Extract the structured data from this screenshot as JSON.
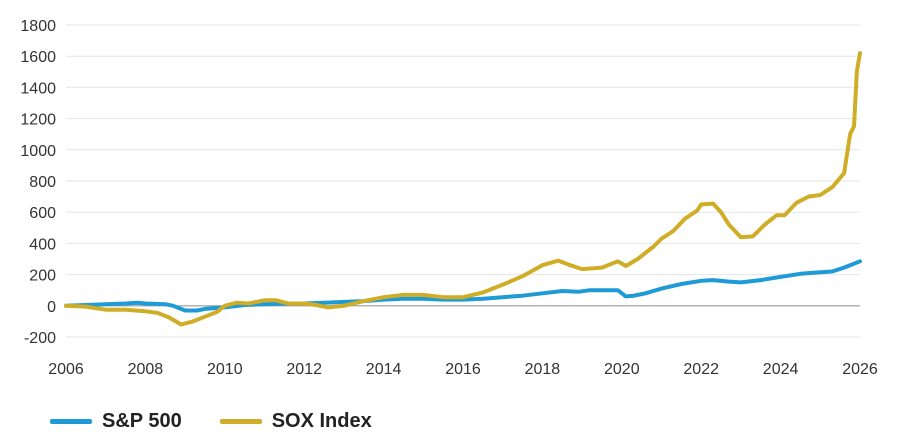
{
  "chart_data": {
    "type": "line",
    "title": "",
    "xlabel": "",
    "ylabel": "",
    "xlim": [
      2006,
      2026
    ],
    "ylim": [
      -200,
      1800
    ],
    "y_ticks": [
      "1800",
      "1600",
      "1400",
      "1200",
      "1000",
      "800",
      "600",
      "400",
      "200",
      "0",
      "-200"
    ],
    "x_ticks": [
      "2006",
      "2008",
      "2010",
      "2012",
      "2014",
      "2016",
      "2018",
      "2020",
      "2022",
      "2024",
      "2026"
    ],
    "grid": "horizontal",
    "legend_position": "bottom-left",
    "series": [
      {
        "name": "S&P 500",
        "color": "#1e9bd7",
        "points": [
          [
            2006.0,
            0
          ],
          [
            2006.5,
            5
          ],
          [
            2007.0,
            10
          ],
          [
            2007.5,
            15
          ],
          [
            2007.8,
            20
          ],
          [
            2008.0,
            15
          ],
          [
            2008.5,
            10
          ],
          [
            2008.7,
            0
          ],
          [
            2009.0,
            -30
          ],
          [
            2009.3,
            -30
          ],
          [
            2009.5,
            -20
          ],
          [
            2010.0,
            -10
          ],
          [
            2010.5,
            5
          ],
          [
            2011.0,
            10
          ],
          [
            2011.5,
            15
          ],
          [
            2012.0,
            15
          ],
          [
            2012.5,
            20
          ],
          [
            2013.0,
            25
          ],
          [
            2013.5,
            30
          ],
          [
            2014.0,
            40
          ],
          [
            2014.5,
            45
          ],
          [
            2015.0,
            45
          ],
          [
            2015.5,
            40
          ],
          [
            2016.0,
            40
          ],
          [
            2016.5,
            45
          ],
          [
            2017.0,
            55
          ],
          [
            2017.5,
            65
          ],
          [
            2018.0,
            80
          ],
          [
            2018.5,
            95
          ],
          [
            2018.9,
            90
          ],
          [
            2019.2,
            100
          ],
          [
            2019.6,
            100
          ],
          [
            2019.9,
            100
          ],
          [
            2020.1,
            60
          ],
          [
            2020.3,
            65
          ],
          [
            2020.6,
            80
          ],
          [
            2021.0,
            110
          ],
          [
            2021.5,
            140
          ],
          [
            2022.0,
            160
          ],
          [
            2022.3,
            165
          ],
          [
            2022.7,
            155
          ],
          [
            2023.0,
            150
          ],
          [
            2023.5,
            165
          ],
          [
            2024.0,
            185
          ],
          [
            2024.5,
            205
          ],
          [
            2025.0,
            215
          ],
          [
            2025.3,
            220
          ],
          [
            2025.6,
            245
          ],
          [
            2026.0,
            285
          ]
        ]
      },
      {
        "name": "SOX Index",
        "color": "#d0ad27",
        "points": [
          [
            2006.0,
            0
          ],
          [
            2006.5,
            -5
          ],
          [
            2007.0,
            -25
          ],
          [
            2007.5,
            -25
          ],
          [
            2008.0,
            -35
          ],
          [
            2008.3,
            -45
          ],
          [
            2008.6,
            -75
          ],
          [
            2008.9,
            -120
          ],
          [
            2009.2,
            -100
          ],
          [
            2009.5,
            -70
          ],
          [
            2009.8,
            -40
          ],
          [
            2010.0,
            0
          ],
          [
            2010.3,
            20
          ],
          [
            2010.6,
            15
          ],
          [
            2011.0,
            35
          ],
          [
            2011.3,
            35
          ],
          [
            2011.6,
            15
          ],
          [
            2012.0,
            15
          ],
          [
            2012.3,
            5
          ],
          [
            2012.6,
            -10
          ],
          [
            2013.0,
            0
          ],
          [
            2013.5,
            30
          ],
          [
            2014.0,
            55
          ],
          [
            2014.5,
            70
          ],
          [
            2015.0,
            70
          ],
          [
            2015.5,
            55
          ],
          [
            2016.0,
            55
          ],
          [
            2016.5,
            85
          ],
          [
            2017.0,
            135
          ],
          [
            2017.5,
            190
          ],
          [
            2018.0,
            260
          ],
          [
            2018.4,
            290
          ],
          [
            2018.7,
            260
          ],
          [
            2019.0,
            235
          ],
          [
            2019.5,
            245
          ],
          [
            2019.9,
            285
          ],
          [
            2020.1,
            255
          ],
          [
            2020.4,
            300
          ],
          [
            2020.8,
            380
          ],
          [
            2021.0,
            430
          ],
          [
            2021.3,
            480
          ],
          [
            2021.6,
            560
          ],
          [
            2021.9,
            610
          ],
          [
            2022.0,
            650
          ],
          [
            2022.3,
            655
          ],
          [
            2022.5,
            600
          ],
          [
            2022.7,
            520
          ],
          [
            2023.0,
            440
          ],
          [
            2023.3,
            445
          ],
          [
            2023.6,
            520
          ],
          [
            2023.9,
            580
          ],
          [
            2024.1,
            580
          ],
          [
            2024.4,
            660
          ],
          [
            2024.7,
            700
          ],
          [
            2025.0,
            710
          ],
          [
            2025.3,
            760
          ],
          [
            2025.6,
            850
          ],
          [
            2025.75,
            1100
          ],
          [
            2025.85,
            1150
          ],
          [
            2025.92,
            1500
          ],
          [
            2026.0,
            1620
          ]
        ]
      }
    ]
  }
}
